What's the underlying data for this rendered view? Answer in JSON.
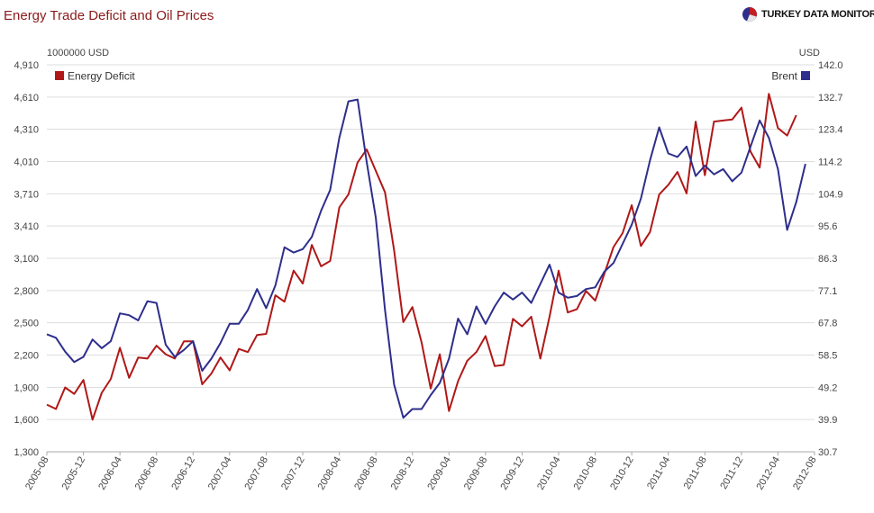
{
  "title": "Energy Trade Deficit and Oil Prices",
  "brand": {
    "name": "TURKEY DATA MONITOR",
    "icon": "pie-logo-icon"
  },
  "colors": {
    "energy_deficit": "#b01818",
    "brent": "#2e2e8c",
    "grid": "#dddddd",
    "title": "#8b1a1a"
  },
  "chart_data": {
    "type": "line",
    "x_ticks": [
      "2005-08",
      "2005-12",
      "2006-04",
      "2006-08",
      "2006-12",
      "2007-04",
      "2007-08",
      "2007-12",
      "2008-04",
      "2008-08",
      "2008-12",
      "2009-04",
      "2009-08",
      "2009-12",
      "2010-04",
      "2010-08",
      "2010-12",
      "2011-04",
      "2011-08",
      "2011-12",
      "2012-04",
      "2012-08"
    ],
    "left_axis": {
      "unit_label": "1000000 USD",
      "ticks": [
        "4,910",
        "4,610",
        "4,310",
        "4,010",
        "3,710",
        "3,410",
        "3,100",
        "2,800",
        "2,500",
        "2,200",
        "1,900",
        "1,600",
        "1,300"
      ],
      "ylim": [
        1300,
        4910
      ]
    },
    "right_axis": {
      "unit_label": "USD",
      "ticks": [
        "142.0",
        "132.7",
        "123.4",
        "114.2",
        "104.9",
        "95.6",
        "86.3",
        "77.1",
        "67.8",
        "58.5",
        "49.2",
        "39.9",
        "30.7"
      ],
      "ylim": [
        30.7,
        142.0
      ]
    },
    "grid": true,
    "legend": {
      "left": "top-left",
      "right": "top-right"
    },
    "series": [
      {
        "name": "Energy Deficit",
        "axis": "left",
        "color": "#b01818",
        "start": "2005-08",
        "values": [
          1740,
          1700,
          1900,
          1840,
          1970,
          1600,
          1850,
          1980,
          2270,
          1990,
          2180,
          2170,
          2290,
          2210,
          2170,
          2330,
          2330,
          1930,
          2030,
          2180,
          2060,
          2260,
          2230,
          2390,
          2400,
          2760,
          2700,
          2990,
          2870,
          3230,
          3030,
          3080,
          3580,
          3700,
          4000,
          4120,
          3920,
          3720,
          3180,
          2510,
          2650,
          2320,
          1890,
          2210,
          1680,
          1960,
          2150,
          2230,
          2380,
          2100,
          2110,
          2540,
          2470,
          2560,
          2170,
          2560,
          2990,
          2600,
          2630,
          2800,
          2710,
          2960,
          3210,
          3340,
          3600,
          3220,
          3350,
          3700,
          3790,
          3910,
          3710,
          4380,
          3880,
          4380,
          4390,
          4400,
          4510,
          4100,
          3950,
          4640,
          4320,
          4250,
          4440
        ]
      },
      {
        "name": "Brent",
        "axis": "right",
        "color": "#2e2e8c",
        "start": "2005-08",
        "values": [
          64.5,
          63.5,
          59.5,
          56.5,
          58.0,
          63.0,
          60.5,
          62.5,
          70.5,
          70.0,
          68.5,
          74.0,
          73.5,
          61.5,
          58.0,
          60.0,
          62.5,
          54.0,
          57.5,
          62.0,
          67.5,
          67.5,
          71.5,
          77.5,
          72.0,
          78.5,
          89.5,
          88.0,
          89.0,
          92.5,
          100.0,
          106.0,
          121.0,
          131.5,
          132.0,
          114.0,
          98.0,
          71.5,
          50.0,
          40.5,
          43.0,
          43.0,
          47.0,
          50.5,
          57.5,
          69.0,
          64.5,
          72.5,
          67.5,
          72.5,
          76.5,
          74.5,
          76.5,
          73.5,
          79.0,
          84.5,
          76.5,
          75.0,
          75.5,
          77.5,
          78.0,
          82.5,
          85.0,
          90.5,
          96.0,
          103.5,
          114.5,
          124.0,
          116.5,
          115.5,
          118.5,
          110.0,
          113.0,
          110.5,
          112.0,
          108.5,
          111.0,
          118.5,
          126.0,
          121.0,
          112.0,
          94.5,
          102.5,
          113.5
        ]
      }
    ]
  }
}
